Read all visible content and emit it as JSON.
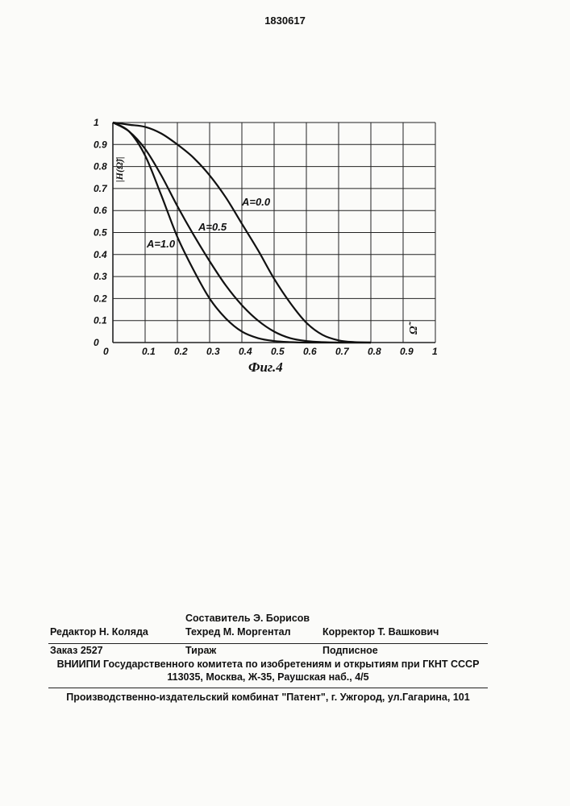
{
  "header": {
    "patent_number": "1830617"
  },
  "figure": {
    "caption": "Фиг.4"
  },
  "chart_data": {
    "type": "line",
    "ylabel": "|H(Ω̃)|",
    "xlabel": "Ω̃",
    "xlim": [
      0,
      1
    ],
    "ylim": [
      0,
      1
    ],
    "grid": true,
    "x_ticks": [
      "0",
      "0.1",
      "0.2",
      "0.3",
      "0.4",
      "0.5",
      "0.6",
      "0.7",
      "0.8",
      "0.9",
      "1"
    ],
    "y_ticks": [
      "0",
      "0.1",
      "0.2",
      "0.3",
      "0.4",
      "0.5",
      "0.6",
      "0.7",
      "0.8",
      "0.9",
      "1"
    ],
    "x": [
      0,
      0.05,
      0.1,
      0.15,
      0.2,
      0.25,
      0.3,
      0.35,
      0.4,
      0.45,
      0.5,
      0.55,
      0.6,
      0.65,
      0.7,
      0.75,
      0.8
    ],
    "series": [
      {
        "name": "A=0.0",
        "values": [
          1.0,
          0.99,
          0.98,
          0.95,
          0.9,
          0.84,
          0.76,
          0.66,
          0.54,
          0.42,
          0.29,
          0.18,
          0.09,
          0.035,
          0.01,
          0.002,
          0.0
        ]
      },
      {
        "name": "A=0.5",
        "values": [
          1.0,
          0.96,
          0.88,
          0.76,
          0.62,
          0.49,
          0.37,
          0.26,
          0.17,
          0.1,
          0.05,
          0.02,
          0.007,
          0.002,
          0.0,
          0.0,
          0.0
        ]
      },
      {
        "name": "A=1.0",
        "values": [
          1.0,
          0.96,
          0.85,
          0.67,
          0.48,
          0.33,
          0.2,
          0.11,
          0.05,
          0.02,
          0.007,
          0.002,
          0.0,
          0.0,
          0.0,
          0.0,
          0.0
        ]
      }
    ]
  },
  "imprint": {
    "compiler": "Составитель  Э. Борисов",
    "editor": "Редактор  Н. Коляда",
    "techred": "Техред   М. Моргентал",
    "corrector": "Корректор  Т. Вашкович",
    "order": "Заказ  2527",
    "circulation": "Тираж",
    "subscription": "Подписное",
    "organization": "ВНИИПИ Государственного комитета по изобретениям и открытиям при ГКНТ СССР",
    "address": "113035, Москва, Ж-35, Раушская наб., 4/5",
    "publisher": "Производственно-издательский комбинат \"Патент\", г. Ужгород, ул.Гагарина, 101"
  }
}
